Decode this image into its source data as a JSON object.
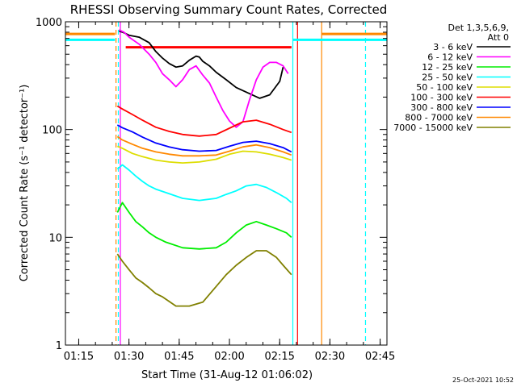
{
  "chart_data": {
    "type": "line",
    "title": "RHESSI Observing Summary Count Rates, Corrected",
    "xlabel": "Start Time (31-Aug-12 01:06:02)",
    "ylabel": "Corrected Count Rate (s⁻¹ detector⁻¹)",
    "yscale": "log",
    "xlim": [
      5.0,
      101.0
    ],
    "ylim": [
      1,
      1000
    ],
    "x_unit": "minutes since 01:06:02",
    "x_ticks": [
      {
        "label": "01:15",
        "value": 8.97
      },
      {
        "label": "01:30",
        "value": 23.97
      },
      {
        "label": "01:45",
        "value": 38.97
      },
      {
        "label": "02:00",
        "value": 53.97
      },
      {
        "label": "02:15",
        "value": 68.97
      },
      {
        "label": "02:30",
        "value": 83.97
      },
      {
        "label": "02:45",
        "value": 98.97
      }
    ],
    "y_ticks": [
      {
        "label": "1",
        "value": 1
      },
      {
        "label": "10",
        "value": 10
      },
      {
        "label": "100",
        "value": 100
      },
      {
        "label": "1000",
        "value": 1000
      }
    ],
    "legend": {
      "header": [
        "Det 1,3,5,6,9,",
        "Att 0"
      ],
      "position": "right"
    },
    "series": [
      {
        "name": "3 - 6 keV",
        "color": "#000000",
        "x": [
          21.0,
          22.5,
          24.0,
          27.0,
          30.0,
          32.0,
          34.0,
          36.0,
          38.0,
          40.0,
          42.0,
          44.0,
          45.0,
          46.0,
          48.0,
          50.0,
          53.0,
          56.0,
          60.0,
          63.0,
          66.0,
          69.0,
          70.0
        ],
        "y": [
          820,
          790,
          750,
          720,
          640,
          530,
          460,
          410,
          380,
          390,
          440,
          480,
          470,
          430,
          390,
          340,
          290,
          245,
          215,
          195,
          210,
          280,
          380
        ]
      },
      {
        "name": "6 - 12 keV",
        "color": "#ff00ff",
        "x": [
          21.0,
          22.5,
          24.0,
          27.0,
          30.0,
          32.0,
          34.0,
          36.0,
          38.0,
          40.0,
          42.0,
          44.0,
          46.0,
          48.0,
          50.0,
          52.0,
          54.0,
          56.0,
          58.0,
          60.0,
          62.0,
          64.0,
          66.0,
          68.0,
          70.0,
          71.5
        ],
        "y": [
          840,
          800,
          720,
          620,
          500,
          420,
          330,
          290,
          250,
          290,
          360,
          390,
          320,
          270,
          200,
          150,
          120,
          105,
          118,
          190,
          290,
          380,
          420,
          420,
          390,
          330
        ]
      },
      {
        "name": "12 - 25 keV",
        "color": "#00ee00",
        "x": [
          20.5,
          22.0,
          24.0,
          26.0,
          28.0,
          30.0,
          32.0,
          35.0,
          40.0,
          45.0,
          50.0,
          53.0,
          56.0,
          59.0,
          62.0,
          65.0,
          68.0,
          71.0,
          72.5
        ],
        "y": [
          17,
          21,
          17,
          14,
          12.5,
          11,
          10,
          9,
          8,
          7.8,
          8,
          9,
          11,
          13,
          14,
          13,
          12,
          11,
          10
        ]
      },
      {
        "name": "25 - 50 keV",
        "color": "#00ffff",
        "x": [
          20.5,
          22.0,
          24.0,
          26.0,
          28.0,
          30.0,
          32.0,
          35.0,
          40.0,
          45.0,
          50.0,
          53.0,
          56.0,
          59.0,
          62.0,
          65.0,
          68.0,
          71.0,
          72.5
        ],
        "y": [
          43,
          47,
          42,
          37,
          33,
          30,
          28,
          26,
          23,
          22,
          23,
          25,
          27,
          30,
          31,
          29,
          26,
          23,
          21
        ]
      },
      {
        "name": "50 - 100 keV",
        "color": "#dddd00",
        "x": [
          20.5,
          22.0,
          25.0,
          28.0,
          32.0,
          36.0,
          40.0,
          45.0,
          50.0,
          54.0,
          58.0,
          62.0,
          66.0,
          70.0,
          72.5
        ],
        "y": [
          70,
          67,
          60,
          56,
          52,
          50,
          49,
          50,
          53,
          59,
          63,
          62,
          59,
          55,
          52
        ]
      },
      {
        "name": "100 - 300 keV",
        "color": "#ff0000",
        "x": [
          20.5,
          22.0,
          25.0,
          28.0,
          32.0,
          36.0,
          40.0,
          45.0,
          50.0,
          54.0,
          58.0,
          62.0,
          66.0,
          70.0,
          72.5
        ],
        "y": [
          165,
          155,
          138,
          122,
          105,
          96,
          90,
          87,
          90,
          103,
          118,
          122,
          112,
          100,
          94
        ]
      },
      {
        "name": "300 - 800 keV",
        "color": "#0000ff",
        "x": [
          20.5,
          22.0,
          25.0,
          28.0,
          32.0,
          36.0,
          40.0,
          45.0,
          50.0,
          54.0,
          58.0,
          62.0,
          66.0,
          70.0,
          72.5
        ],
        "y": [
          110,
          104,
          95,
          85,
          75,
          69,
          65,
          63,
          64,
          70,
          76,
          78,
          74,
          68,
          62
        ]
      },
      {
        "name": "800 - 7000 keV",
        "color": "#ff8800",
        "x": [
          20.5,
          22.0,
          25.0,
          28.0,
          32.0,
          36.0,
          40.0,
          45.0,
          50.0,
          54.0,
          58.0,
          62.0,
          66.0,
          70.0,
          72.5
        ],
        "y": [
          86,
          80,
          73,
          67,
          62,
          59,
          57,
          57,
          58,
          63,
          69,
          72,
          68,
          62,
          58
        ]
      },
      {
        "name": "7000 - 15000 keV",
        "color": "#808000",
        "x": [
          20.5,
          22.0,
          24.0,
          26.0,
          28.0,
          30.0,
          32.0,
          34.0,
          38.0,
          42.0,
          46.0,
          50.0,
          53.0,
          56.0,
          59.0,
          62.0,
          65.0,
          68.0,
          70.0,
          72.5
        ],
        "y": [
          7,
          6,
          5,
          4.2,
          3.8,
          3.4,
          3.0,
          2.8,
          2.3,
          2.3,
          2.5,
          3.5,
          4.5,
          5.5,
          6.5,
          7.5,
          7.5,
          6.5,
          5.5,
          4.5
        ]
      }
    ],
    "markers": [
      {
        "kind": "vertical-line",
        "x": 20.1,
        "color": "#ff8800",
        "style": "dashed"
      },
      {
        "kind": "vertical-line",
        "x": 20.8,
        "color": "#00ffff",
        "style": "dashed"
      },
      {
        "kind": "vertical-line",
        "x": 21.4,
        "color": "#ff00ff",
        "style": "solid"
      },
      {
        "kind": "vertical-line",
        "x": 72.9,
        "color": "#00ffff",
        "style": "solid"
      },
      {
        "kind": "vertical-line",
        "x": 74.3,
        "color": "#ff0000",
        "style": "solid"
      },
      {
        "kind": "vertical-line",
        "x": 81.5,
        "color": "#ff8800",
        "style": "solid"
      },
      {
        "kind": "vertical-line",
        "x": 94.6,
        "color": "#00ffff",
        "style": "dashed"
      },
      {
        "kind": "horizontal-bar",
        "x": [
          5.0,
          19.8
        ],
        "y": 770,
        "color": "#ff8800"
      },
      {
        "kind": "horizontal-bar",
        "x": [
          5.0,
          19.8
        ],
        "y": 680,
        "color": "#00ffff"
      },
      {
        "kind": "horizontal-bar",
        "x": [
          23.0,
          72.5
        ],
        "y": 580,
        "color": "#ff0000"
      },
      {
        "kind": "horizontal-bar",
        "x": [
          72.9,
          101.0
        ],
        "y": 680,
        "color": "#00ffff"
      },
      {
        "kind": "horizontal-bar",
        "x": [
          81.5,
          101.0
        ],
        "y": 770,
        "color": "#ff8800"
      }
    ]
  },
  "timestamp": "25-Oct-2021 10:52"
}
